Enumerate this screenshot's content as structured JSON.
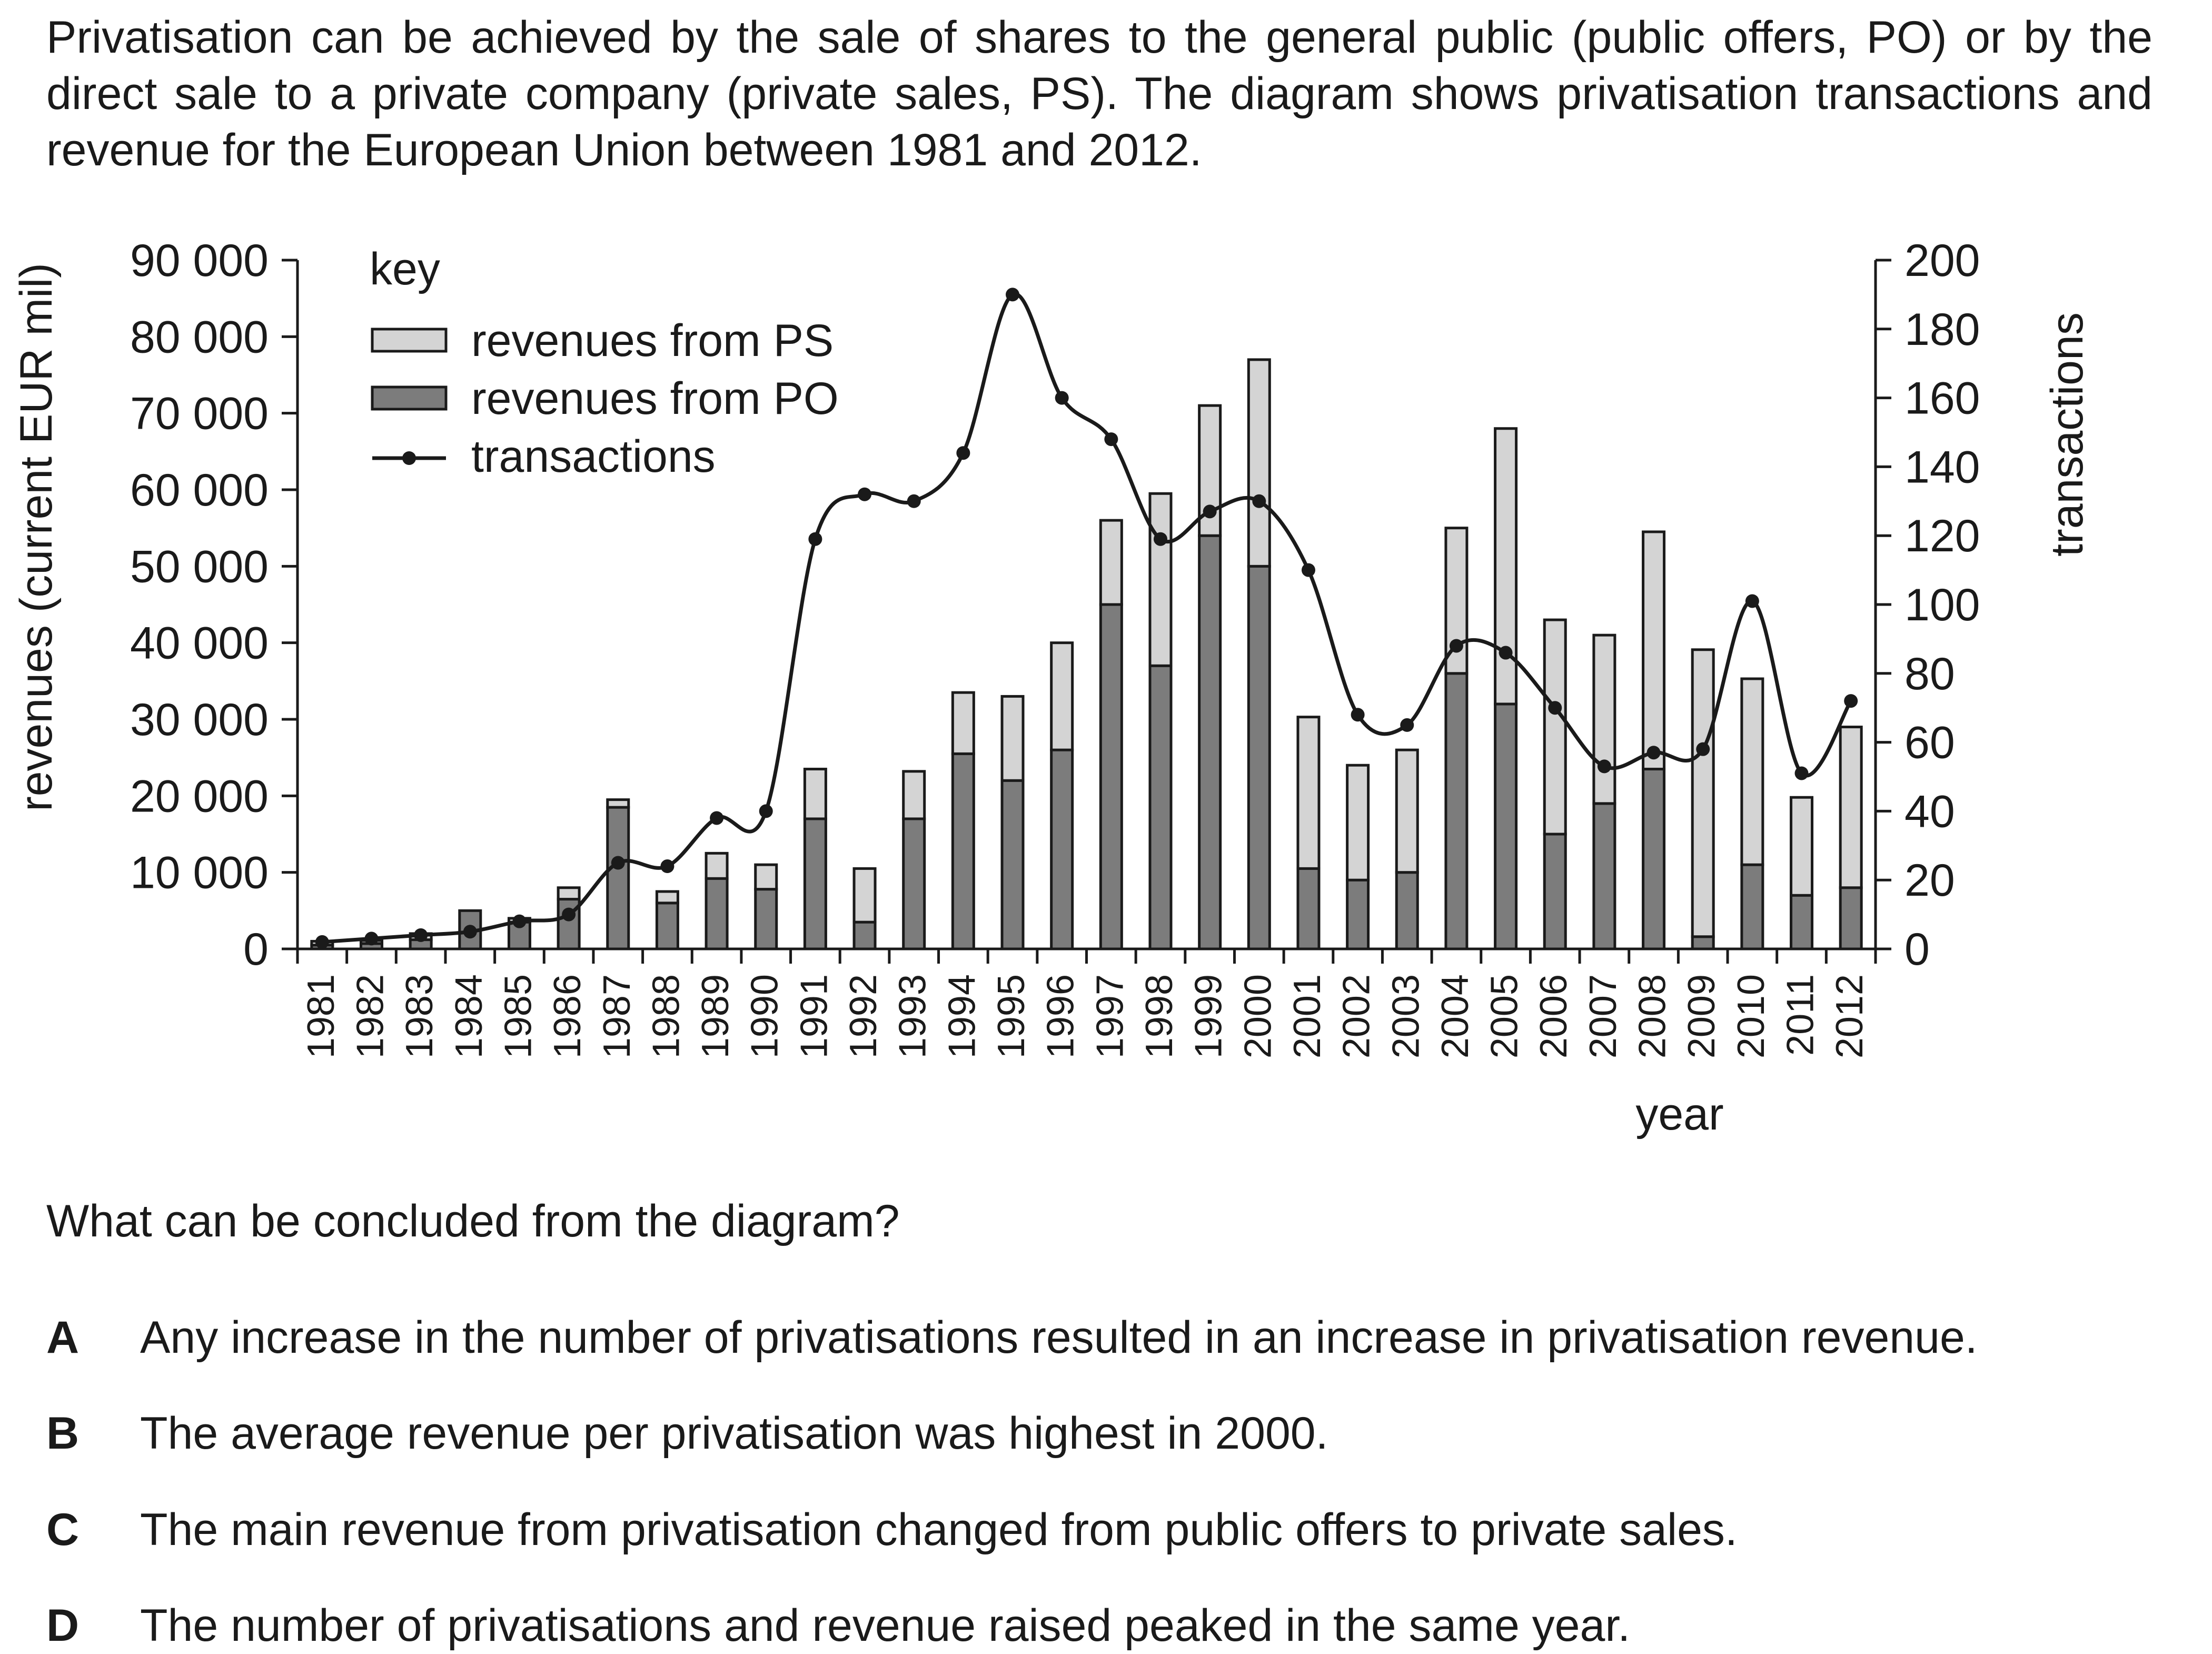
{
  "intro_text": "Privatisation can be achieved by the sale of shares to the general public (public offers, PO) or by the direct sale to a private company (private sales, PS). The diagram shows privatisation transactions and revenue for the European Union between 1981 and 2012.",
  "question": "What can be concluded from the diagram?",
  "options": [
    {
      "letter": "A",
      "text": "Any increase in the number of privatisations resulted in an increase in privatisation revenue."
    },
    {
      "letter": "B",
      "text": "The average revenue per privatisation was highest in 2000."
    },
    {
      "letter": "C",
      "text": "The main revenue from privatisation changed from public offers to private sales."
    },
    {
      "letter": "D",
      "text": "The number of privatisations and revenue raised peaked in the same year."
    }
  ],
  "colors": {
    "ps": "#d4d4d4",
    "po": "#7c7c7c",
    "line": "#1a1a1a",
    "axis": "#1a1a1a"
  },
  "chart_data": {
    "type": "bar",
    "stacked": true,
    "xlabel": "year",
    "ylabel": "revenues (current EUR mil)",
    "y2label": "transactions",
    "ylim": [
      0,
      90000
    ],
    "y2lim": [
      0,
      200
    ],
    "yticks": [
      0,
      10000,
      20000,
      30000,
      40000,
      50000,
      60000,
      70000,
      80000,
      90000
    ],
    "yticklabels": [
      "0",
      "10 000",
      "20 000",
      "30 000",
      "40 000",
      "50 000",
      "60 000",
      "70 000",
      "80 000",
      "90 000"
    ],
    "y2ticks": [
      0,
      20,
      40,
      60,
      80,
      100,
      120,
      140,
      160,
      180,
      200
    ],
    "legend_title": "key",
    "legend_position": "top-left",
    "grid": false,
    "categories": [
      "1981",
      "1982",
      "1983",
      "1984",
      "1985",
      "1986",
      "1987",
      "1988",
      "1989",
      "1990",
      "1991",
      "1992",
      "1993",
      "1994",
      "1995",
      "1996",
      "1997",
      "1998",
      "1999",
      "2000",
      "2001",
      "2002",
      "2003",
      "2004",
      "2005",
      "2006",
      "2007",
      "2008",
      "2009",
      "2010",
      "2011",
      "2012"
    ],
    "series": [
      {
        "name": "revenues from PO",
        "kind": "bar",
        "values": [
          500,
          700,
          1200,
          5000,
          3500,
          6500,
          18500,
          6000,
          9200,
          7800,
          17000,
          3500,
          17000,
          25500,
          22000,
          26000,
          45000,
          37000,
          54000,
          50000,
          10500,
          9000,
          10000,
          36000,
          32000,
          15000,
          19000,
          23500,
          1600,
          11000,
          7000,
          8000
        ]
      },
      {
        "name": "revenues from PS",
        "kind": "bar",
        "values": [
          500,
          400,
          800,
          0,
          500,
          1500,
          1000,
          1500,
          3300,
          3200,
          6500,
          7000,
          6200,
          8000,
          11000,
          14000,
          11000,
          22500,
          17000,
          27000,
          19800,
          15000,
          16000,
          19000,
          36000,
          28000,
          22000,
          31000,
          37500,
          24300,
          12800,
          21000
        ]
      },
      {
        "name": "transactions",
        "kind": "line",
        "axis": "right",
        "values": [
          2,
          3,
          4,
          5,
          8,
          10,
          25,
          24,
          38,
          40,
          119,
          132,
          130,
          144,
          190,
          160,
          148,
          119,
          127,
          130,
          110,
          68,
          65,
          88,
          86,
          70,
          53,
          57,
          58,
          101,
          51,
          72
        ]
      }
    ]
  }
}
